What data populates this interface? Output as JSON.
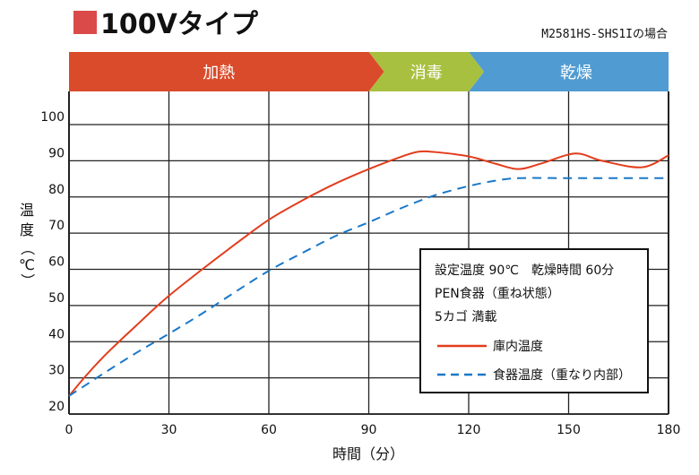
{
  "header": {
    "title": "100Vタイプ",
    "title_marker_color": "#d94a48",
    "model_note": "M2581HS-SHS1Iの場合"
  },
  "phases": [
    {
      "label": "加熱",
      "start": 0,
      "end": 90,
      "color": "#d94b2b"
    },
    {
      "label": "消毒",
      "start": 90,
      "end": 120,
      "color": "#a8c03f"
    },
    {
      "label": "乾燥",
      "start": 120,
      "end": 180,
      "color": "#509bd2"
    }
  ],
  "chart_data": {
    "type": "line",
    "title": "100Vタイプ",
    "xlabel": "時間（分）",
    "ylabel": "温度（℃）",
    "xlim": [
      0,
      180
    ],
    "ylim": [
      20,
      100
    ],
    "xticks": [
      0,
      30,
      60,
      90,
      120,
      150,
      180
    ],
    "yticks": [
      20,
      30,
      40,
      50,
      60,
      70,
      80,
      90,
      100
    ],
    "grid": true,
    "legend_position": "bottom-right",
    "annotations": [
      "設定温度 90℃　乾燥時間 60分",
      "PEN食器（重ね状態）",
      "5カゴ 満載"
    ],
    "series": [
      {
        "name": "庫内温度",
        "color": "#e23d1c",
        "style": "solid",
        "x": [
          0,
          5,
          10,
          15,
          20,
          25,
          30,
          40,
          50,
          60,
          70,
          80,
          90,
          100,
          105,
          110,
          120,
          128,
          135,
          142,
          152,
          160,
          172,
          180
        ],
        "y": [
          25,
          30.5,
          35.5,
          40,
          44.3,
          48.6,
          52.7,
          60,
          67,
          73.7,
          79,
          83.7,
          87.7,
          91.2,
          92.5,
          92.4,
          91.2,
          89.2,
          87.7,
          89.3,
          92.0,
          90.0,
          88.2,
          91.5
        ]
      },
      {
        "name": "食器温度（重なり内部）",
        "color": "#1a78c8",
        "style": "dashed",
        "x": [
          0,
          10,
          20,
          30,
          40,
          50,
          60,
          70,
          80,
          90,
          100,
          110,
          120,
          128,
          135,
          150,
          165,
          180
        ],
        "y": [
          25,
          31,
          36.8,
          42.2,
          47.8,
          53.8,
          59.6,
          64.5,
          69.2,
          73,
          77,
          80.5,
          83.0,
          84.5,
          85.2,
          85.2,
          85.2,
          85.2
        ]
      }
    ]
  }
}
